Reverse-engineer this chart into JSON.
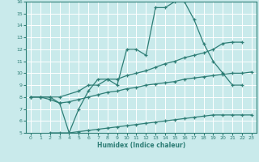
{
  "xlabel": "Humidex (Indice chaleur)",
  "xlim": [
    -0.5,
    23.5
  ],
  "ylim": [
    5,
    16
  ],
  "xticks": [
    0,
    1,
    2,
    3,
    4,
    5,
    6,
    7,
    8,
    9,
    10,
    11,
    12,
    13,
    14,
    15,
    16,
    17,
    18,
    19,
    20,
    21,
    22,
    23
  ],
  "yticks": [
    5,
    6,
    7,
    8,
    9,
    10,
    11,
    12,
    13,
    14,
    15,
    16
  ],
  "bg_color": "#c9eaeb",
  "line_color": "#2e7e76",
  "grid_color": "#ffffff",
  "line1_x": [
    0,
    1,
    2,
    3,
    4,
    5,
    6,
    7,
    8,
    9,
    10,
    11,
    12,
    13,
    14,
    15,
    16,
    17,
    18,
    19,
    20,
    21,
    22
  ],
  "line1_y": [
    8,
    8,
    8,
    7.5,
    5,
    7,
    8.5,
    9.5,
    9.5,
    9,
    12,
    12,
    11.5,
    15.5,
    15.5,
    16,
    16,
    14.5,
    12.5,
    11,
    10,
    9,
    9
  ],
  "line2_x": [
    0,
    1,
    2,
    3,
    5,
    6,
    7,
    8,
    9,
    10,
    11,
    12,
    13,
    14,
    15,
    16,
    17,
    18,
    19,
    20,
    21,
    22
  ],
  "line2_y": [
    8,
    8,
    8,
    8,
    8.5,
    9,
    9,
    9.5,
    9.5,
    9.8,
    10,
    10.2,
    10.5,
    10.8,
    11,
    11.3,
    11.5,
    11.7,
    12,
    12.5,
    12.6,
    12.6
  ],
  "line3_x": [
    0,
    1,
    2,
    3,
    4,
    5,
    6,
    7,
    8,
    9,
    10,
    11,
    12,
    13,
    14,
    15,
    16,
    17,
    18,
    19,
    20,
    21,
    22,
    23
  ],
  "line3_y": [
    8,
    8,
    7.8,
    7.5,
    7.6,
    7.8,
    8,
    8.2,
    8.4,
    8.5,
    8.7,
    8.8,
    9.0,
    9.1,
    9.2,
    9.3,
    9.5,
    9.6,
    9.7,
    9.8,
    9.9,
    10.0,
    10.0,
    10.1
  ],
  "line4_x": [
    2,
    3,
    4,
    5,
    6,
    7,
    8,
    9,
    10,
    11,
    12,
    13,
    14,
    15,
    16,
    17,
    18,
    19,
    20,
    21,
    22,
    23
  ],
  "line4_y": [
    5,
    5,
    5,
    5.1,
    5.2,
    5.3,
    5.4,
    5.5,
    5.6,
    5.7,
    5.8,
    5.9,
    6.0,
    6.1,
    6.2,
    6.3,
    6.4,
    6.5,
    6.5,
    6.5,
    6.5,
    6.5
  ]
}
